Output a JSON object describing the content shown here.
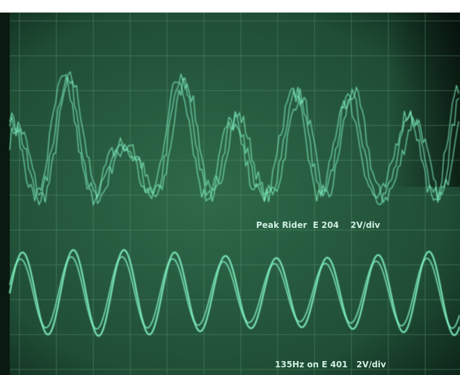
{
  "labels": {
    "top_trace": "Peak Rider  E 204    2V/div",
    "bottom_trace": "135Hz on E 401   2V/div"
  }
}
